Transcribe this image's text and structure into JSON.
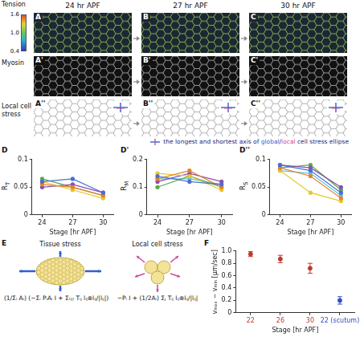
{
  "figure": {
    "stages": [
      "24 hr APF",
      "27 hr APF",
      "30 hr APF"
    ],
    "rows": [
      {
        "label": "Tension",
        "panels": [
          "A",
          "B",
          "C"
        ]
      },
      {
        "label": "Myosin",
        "panels": [
          "A'",
          "B'",
          "C'"
        ]
      },
      {
        "label": "Local cell stress",
        "panels": [
          "A''",
          "B''",
          "C''"
        ]
      }
    ],
    "tension_colorbar": {
      "range": [
        0.4,
        1.6
      ],
      "ticks": [
        0.4,
        {
          "value": 1,
          "label": "1.0"
        },
        1.6
      ]
    },
    "stress_legend": [
      {
        "text": "the longest and shortest axis of ",
        "color": "#2a2a7a"
      },
      {
        "text": "global",
        "color": "#2f5fd0"
      },
      {
        "text": "/",
        "color": "#2a2a7a"
      },
      {
        "text": "local",
        "color": "#d04a9a"
      },
      {
        "text": " cell stress ellipse",
        "color": "#2a2a7a"
      }
    ],
    "model": {
      "panel": "E",
      "tissue": {
        "title": "Tissue stress",
        "formula": "(1/Σᵢ Aᵢ) (−Σᵢ PᵢAᵢ I + Σ₍ᵢⱼ₎ Tᵢⱼ lᵢⱼ⊗lᵢⱼ/|lᵢⱼ|)"
      },
      "local": {
        "title": "Local cell stress",
        "formula": "−Pᵢ I + (1/2Aᵢ) Σⱼ Tᵢⱼ lᵢⱼ⊗lᵢⱼ/|lᵢⱼ|"
      }
    }
  },
  "chart_data": [
    {
      "panel": "D",
      "type": "line",
      "x": [
        24,
        27,
        30
      ],
      "xlim": [
        23,
        31
      ],
      "xticks": [
        24,
        27,
        30
      ],
      "ylim": [
        0,
        0.1
      ],
      "yticks": [
        0,
        0.05,
        0.1
      ],
      "xlabel": "Stage [hr APF]",
      "ylabel": "R",
      "ylabel_subscript": "T",
      "grid": false,
      "marker": "circle",
      "series": [
        {
          "color": "#4a6fd1",
          "values": [
            0.06,
            0.065,
            0.04
          ]
        },
        {
          "color": "#e8822a",
          "values": [
            0.055,
            0.05,
            0.035
          ]
        },
        {
          "color": "#e8c62a",
          "values": [
            0.06,
            0.045,
            0.03
          ]
        },
        {
          "color": "#8a4fb0",
          "values": [
            0.05,
            0.055,
            0.04
          ]
        },
        {
          "color": "#5aa84a",
          "values": [
            0.065,
            0.05,
            0.035
          ]
        }
      ]
    },
    {
      "panel": "D'",
      "type": "line",
      "x": [
        24,
        27,
        30
      ],
      "xlim": [
        23,
        31
      ],
      "xticks": [
        24,
        27,
        30
      ],
      "ylim": [
        0,
        0.2
      ],
      "yticks": [
        0,
        0.1,
        0.2
      ],
      "xlabel": "Stage [hr APF]",
      "ylabel": "R",
      "ylabel_subscript": "M",
      "grid": false,
      "marker": "circle",
      "series": [
        {
          "color": "#4a6fd1",
          "values": [
            0.14,
            0.12,
            0.11
          ]
        },
        {
          "color": "#e8822a",
          "values": [
            0.13,
            0.16,
            0.1
          ]
        },
        {
          "color": "#e8c62a",
          "values": [
            0.15,
            0.14,
            0.09
          ]
        },
        {
          "color": "#8a4fb0",
          "values": [
            0.12,
            0.15,
            0.12
          ]
        },
        {
          "color": "#5aa84a",
          "values": [
            0.1,
            0.14,
            0.1
          ]
        },
        {
          "color": "#5cc3e0",
          "values": [
            0.13,
            0.13,
            0.11
          ]
        }
      ]
    },
    {
      "panel": "D''",
      "type": "line",
      "x": [
        24,
        27,
        30
      ],
      "xlim": [
        23,
        31
      ],
      "xticks": [
        24,
        27,
        30
      ],
      "ylim": [
        0,
        0.1
      ],
      "yticks": [
        0,
        0.05,
        0.1
      ],
      "xlabel": "Stage [hr APF]",
      "ylabel": "R",
      "ylabel_subscript": "S",
      "grid": false,
      "marker": "circle",
      "series": [
        {
          "color": "#4a6fd1",
          "values": [
            0.09,
            0.08,
            0.04
          ]
        },
        {
          "color": "#e8822a",
          "values": [
            0.085,
            0.07,
            0.03
          ]
        },
        {
          "color": "#e8c62a",
          "values": [
            0.08,
            0.04,
            0.025
          ]
        },
        {
          "color": "#8a4fb0",
          "values": [
            0.09,
            0.085,
            0.05
          ]
        },
        {
          "color": "#5aa84a",
          "values": [
            0.085,
            0.09,
            0.045
          ]
        },
        {
          "color": "#5cc3e0",
          "values": [
            0.08,
            0.075,
            0.035
          ]
        }
      ]
    },
    {
      "panel": "F",
      "type": "scatter",
      "categories": [
        "22",
        "26",
        "30",
        "22 (scutum)"
      ],
      "values": [
        0.95,
        0.87,
        0.72,
        0.2
      ],
      "errors": [
        0.04,
        0.06,
        0.08,
        0.06
      ],
      "colors": [
        "#c0392b",
        "#c0392b",
        "#c0392b",
        "#3050c0"
      ],
      "xlabel": "Stage [hr APF]",
      "ylabel": "vₘₐₓ − vₘᵢₙ [μm/sec]",
      "ylim": [
        0,
        1
      ],
      "yticks": [
        0,
        0.2,
        0.4,
        0.6,
        0.8,
        {
          "value": 1,
          "label": "1.0"
        }
      ],
      "grid": false,
      "marker": "circle"
    }
  ]
}
